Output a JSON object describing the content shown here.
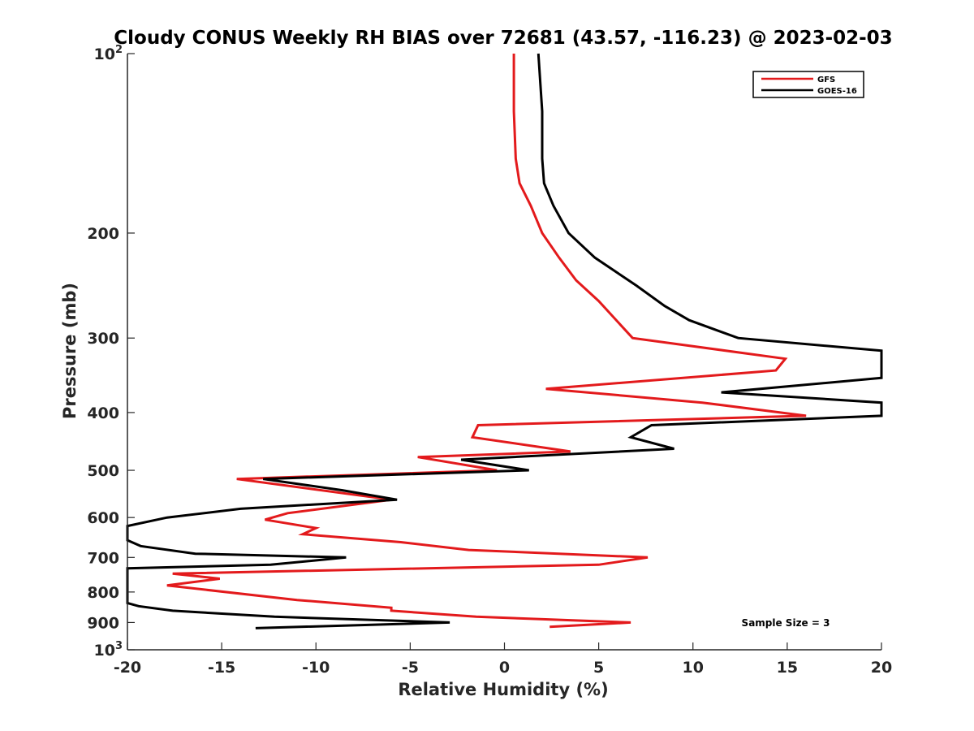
{
  "colors": {
    "gfs": "#e31a1c",
    "goes": "#000000",
    "axis": "#262626"
  },
  "chart_data": {
    "type": "line",
    "title": "Cloudy CONUS Weekly RH BIAS over 72681 (43.57, -116.23) @ 2023-02-03",
    "xlabel": "Relative Humidity (%)",
    "ylabel": "Pressure (mb)",
    "xlim": [
      -20,
      20
    ],
    "ylim": [
      100,
      1000
    ],
    "y_scale": "log",
    "y_reversed": true,
    "grid": false,
    "legend_position": "top-right",
    "x_ticks": [
      "-20",
      "-15",
      "-10",
      "-5",
      "0",
      "5",
      "10",
      "15",
      "20"
    ],
    "y_ticks": [
      {
        "value": 100,
        "label": "10",
        "exp": "2"
      },
      {
        "value": 200,
        "label": "200"
      },
      {
        "value": 300,
        "label": "300"
      },
      {
        "value": 400,
        "label": "400"
      },
      {
        "value": 500,
        "label": "500"
      },
      {
        "value": 600,
        "label": "600"
      },
      {
        "value": 700,
        "label": "700"
      },
      {
        "value": 800,
        "label": "800"
      },
      {
        "value": 900,
        "label": "900"
      },
      {
        "value": 1000,
        "label": "10",
        "exp": "3"
      }
    ],
    "annotation": "Sample Size = 3",
    "series": [
      {
        "name": "GFS",
        "color": "#e31a1c",
        "points": [
          [
            0.5,
            100
          ],
          [
            0.5,
            125
          ],
          [
            0.6,
            150
          ],
          [
            0.8,
            165
          ],
          [
            1.4,
            180
          ],
          [
            2.0,
            200
          ],
          [
            2.9,
            220
          ],
          [
            3.8,
            240
          ],
          [
            5.0,
            260
          ],
          [
            6.8,
            300
          ],
          [
            14.9,
            325
          ],
          [
            14.4,
            340
          ],
          [
            2.2,
            365
          ],
          [
            10.5,
            385
          ],
          [
            16.0,
            405
          ],
          [
            -1.4,
            420
          ],
          [
            -1.7,
            440
          ],
          [
            3.5,
            465
          ],
          [
            -4.6,
            475
          ],
          [
            -0.4,
            500
          ],
          [
            -14.2,
            517
          ],
          [
            -6.0,
            560
          ],
          [
            -11.5,
            590
          ],
          [
            -12.7,
            605
          ],
          [
            -10.0,
            625
          ],
          [
            -10.7,
            640
          ],
          [
            -5.5,
            660
          ],
          [
            -1.9,
            680
          ],
          [
            7.6,
            700
          ],
          [
            5.0,
            720
          ],
          [
            -17.6,
            745
          ],
          [
            -15.1,
            760
          ],
          [
            -17.9,
            780
          ],
          [
            -11.0,
            825
          ],
          [
            -6.0,
            850
          ],
          [
            -6.0,
            860
          ],
          [
            -1.5,
            880
          ],
          [
            6.7,
            900
          ],
          [
            2.4,
            915
          ]
        ]
      },
      {
        "name": "GOES-16",
        "color": "#000000",
        "points": [
          [
            1.8,
            100
          ],
          [
            2.0,
            125
          ],
          [
            2.0,
            150
          ],
          [
            2.1,
            165
          ],
          [
            2.6,
            180
          ],
          [
            3.4,
            200
          ],
          [
            4.8,
            220
          ],
          [
            7.0,
            245
          ],
          [
            8.5,
            265
          ],
          [
            9.8,
            280
          ],
          [
            12.4,
            300
          ],
          [
            20,
            315
          ],
          [
            20,
            350
          ],
          [
            11.5,
            370
          ],
          [
            20,
            385
          ],
          [
            20,
            405
          ],
          [
            7.8,
            420
          ],
          [
            6.7,
            440
          ],
          [
            9.0,
            460
          ],
          [
            -2.3,
            480
          ],
          [
            1.3,
            500
          ],
          [
            -12.8,
            517
          ],
          [
            -8.6,
            540
          ],
          [
            -5.7,
            560
          ],
          [
            -14.0,
            580
          ],
          [
            -17.9,
            600
          ],
          [
            -20.0,
            620
          ],
          [
            -20.0,
            655
          ],
          [
            -19.3,
            670
          ],
          [
            -16.4,
            690
          ],
          [
            -8.4,
            700
          ],
          [
            -12.4,
            720
          ],
          [
            -20.0,
            730
          ],
          [
            -20.0,
            835
          ],
          [
            -19.4,
            845
          ],
          [
            -17.6,
            860
          ],
          [
            -12.2,
            880
          ],
          [
            -2.9,
            900
          ],
          [
            -13.2,
            920
          ]
        ]
      }
    ]
  }
}
